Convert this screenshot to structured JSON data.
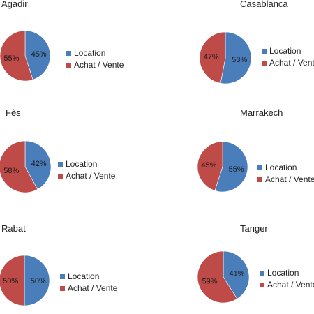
{
  "colors": {
    "location": "#4a7ebb",
    "achat_vente": "#be4b48"
  },
  "legend_labels": [
    "Location",
    "Achat / Vente"
  ],
  "chart_data": [
    {
      "type": "pie",
      "title": "Agadir",
      "labels": [
        "Location",
        "Achat / Vente"
      ],
      "values": [
        45,
        55
      ],
      "value_labels": [
        "45%",
        "55%"
      ]
    },
    {
      "type": "pie",
      "title": "Casablanca",
      "labels": [
        "Location",
        "Achat / Vente"
      ],
      "values": [
        53,
        47
      ],
      "value_labels": [
        "53%",
        "47%"
      ]
    },
    {
      "type": "pie",
      "title": "Fès",
      "labels": [
        "Location",
        "Achat / Vente"
      ],
      "values": [
        42,
        58
      ],
      "value_labels": [
        "42%",
        "58%"
      ]
    },
    {
      "type": "pie",
      "title": "Marrakech",
      "labels": [
        "Location",
        "Achat / Vente"
      ],
      "values": [
        55,
        45
      ],
      "value_labels": [
        "55%",
        "45%"
      ]
    },
    {
      "type": "pie",
      "title": "Rabat",
      "labels": [
        "Location",
        "Achat / Vente"
      ],
      "values": [
        50,
        50
      ],
      "value_labels": [
        "50%",
        "50%"
      ]
    },
    {
      "type": "pie",
      "title": "Tanger",
      "labels": [
        "Location",
        "Achat / Vente"
      ],
      "values": [
        41,
        59
      ],
      "value_labels": [
        "41%",
        "59%"
      ]
    }
  ]
}
